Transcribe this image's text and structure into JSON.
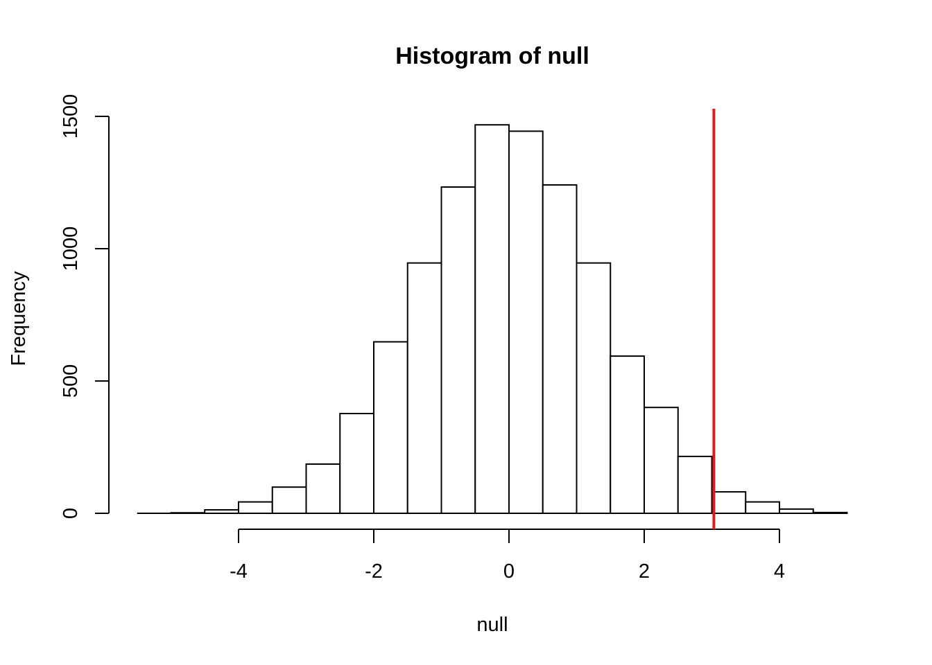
{
  "chart_data": {
    "type": "bar",
    "title": "Histogram of null",
    "xlabel": "null",
    "ylabel": "Frequency",
    "xlim": [
      -5.5,
      5
    ],
    "ylim": [
      0,
      1500
    ],
    "x_ticks": [
      -4,
      -2,
      0,
      2,
      4
    ],
    "y_ticks": [
      0,
      500,
      1000,
      1500
    ],
    "bins": [
      {
        "start": -5.0,
        "end": -4.5,
        "count": 2
      },
      {
        "start": -4.5,
        "end": -4.0,
        "count": 13
      },
      {
        "start": -4.0,
        "end": -3.5,
        "count": 43
      },
      {
        "start": -3.5,
        "end": -3.0,
        "count": 99
      },
      {
        "start": -3.0,
        "end": -2.5,
        "count": 186
      },
      {
        "start": -2.5,
        "end": -2.0,
        "count": 377
      },
      {
        "start": -2.0,
        "end": -1.5,
        "count": 648
      },
      {
        "start": -1.5,
        "end": -1.0,
        "count": 946
      },
      {
        "start": -1.0,
        "end": -0.5,
        "count": 1233
      },
      {
        "start": -0.5,
        "end": 0.0,
        "count": 1468
      },
      {
        "start": 0.0,
        "end": 0.5,
        "count": 1444
      },
      {
        "start": 0.5,
        "end": 1.0,
        "count": 1241
      },
      {
        "start": 1.0,
        "end": 1.5,
        "count": 946
      },
      {
        "start": 1.5,
        "end": 2.0,
        "count": 594
      },
      {
        "start": 2.0,
        "end": 2.5,
        "count": 400
      },
      {
        "start": 2.5,
        "end": 3.0,
        "count": 215
      },
      {
        "start": 3.0,
        "end": 3.5,
        "count": 81
      },
      {
        "start": 3.5,
        "end": 4.0,
        "count": 43
      },
      {
        "start": 4.0,
        "end": 4.5,
        "count": 16
      },
      {
        "start": 4.5,
        "end": 5.0,
        "count": 3
      }
    ],
    "reference_line": {
      "x": 3.03,
      "color": "#e31a1c"
    },
    "bar_fill": "#ffffff",
    "bar_stroke": "#000000",
    "grid": false,
    "legend": "none"
  }
}
